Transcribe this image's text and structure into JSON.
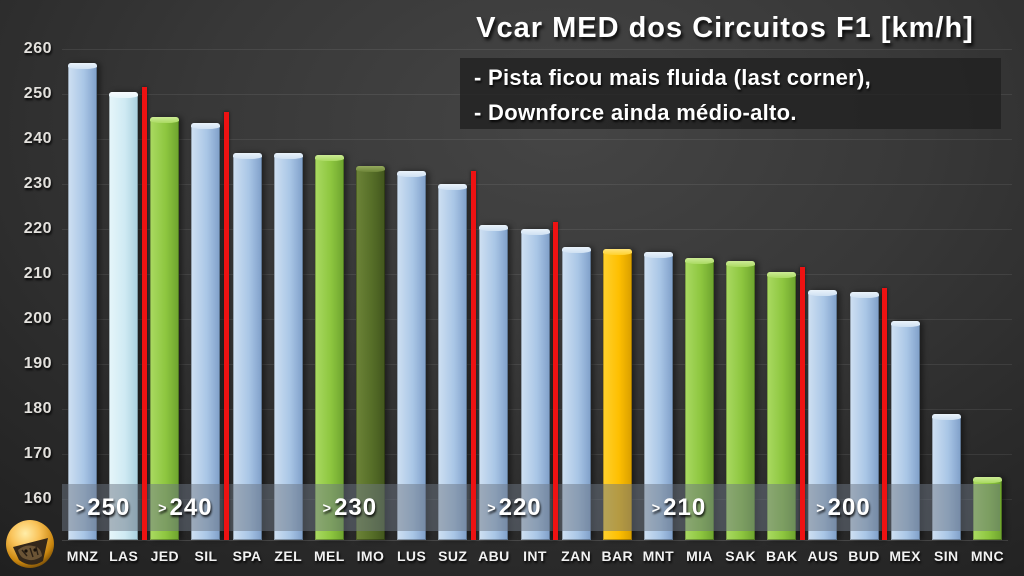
{
  "title": "Vcar MED dos Circuitos F1 [km/h]",
  "annotation": {
    "lines": [
      "- Pista ficou mais fluida (last corner),",
      "- Downforce ainda médio-alto."
    ]
  },
  "chart_data": {
    "type": "bar",
    "title": "Vcar MED dos Circuitos F1 [km/h]",
    "unit": "km/h",
    "categories": [
      "MNZ",
      "LAS",
      "JED",
      "SIL",
      "SPA",
      "ZEL",
      "MEL",
      "IMO",
      "LUS",
      "SUZ",
      "ABU",
      "INT",
      "ZAN",
      "BAR",
      "MNT",
      "MIA",
      "SAK",
      "BAK",
      "AUS",
      "BUD",
      "MEX",
      "SIN",
      "MNC"
    ],
    "values": [
      257,
      250.5,
      245,
      243.5,
      237,
      237,
      236.5,
      234,
      233,
      230,
      221,
      220,
      216,
      215.5,
      215,
      213.5,
      213,
      210.5,
      206.5,
      206,
      199.5,
      179,
      165
    ],
    "bar_colors": [
      "blue",
      "cyan",
      "green",
      "blue",
      "blue",
      "blue",
      "green",
      "darkgreen",
      "blue",
      "blue",
      "blue",
      "blue",
      "blue",
      "yellow",
      "blue",
      "green",
      "green",
      "green",
      "blue",
      "blue",
      "blue",
      "blue",
      "green"
    ],
    "ylim": [
      150,
      262
    ],
    "yticks": [
      160,
      170,
      180,
      190,
      200,
      210,
      220,
      230,
      240,
      250,
      260
    ],
    "grid": true,
    "legend": false,
    "groups": [
      {
        "label": ">250",
        "circuits": [
          "MNZ",
          "LAS"
        ]
      },
      {
        "label": ">240",
        "circuits": [
          "JED",
          "SIL"
        ]
      },
      {
        "label": ">230",
        "circuits": [
          "SPA",
          "ZEL",
          "MEL",
          "IMO",
          "LUS",
          "SUZ"
        ]
      },
      {
        "label": ">220",
        "circuits": [
          "ABU",
          "INT"
        ]
      },
      {
        "label": ">210",
        "circuits": [
          "ZAN",
          "BAR",
          "MNT",
          "MIA",
          "SAK",
          "BAK"
        ]
      },
      {
        "label": ">200",
        "circuits": [
          "AUS",
          "BUD"
        ]
      },
      {
        "label": "",
        "circuits": [
          "MEX",
          "SIN",
          "MNC"
        ]
      }
    ],
    "separator_tops_kmh": [
      251.5,
      246,
      233,
      221.5,
      211.5,
      207
    ]
  },
  "colors": {
    "separator_red": "#ee1212",
    "band_overlay": "rgba(108,118,132,0.5)",
    "bar_palette": {
      "blue": {
        "cap": "#eaf3fb",
        "light": "#cfe0f2",
        "mid": "#a9c6e6",
        "dark": "#7f9fc9"
      },
      "cyan": {
        "cap": "#f7fcfe",
        "light": "#e6f6fa",
        "mid": "#cfeaf3",
        "dark": "#a9d0de"
      },
      "green": {
        "cap": "#cdeb96",
        "light": "#aada62",
        "mid": "#8dc63f",
        "dark": "#6da32e"
      },
      "darkgreen": {
        "cap": "#95aa5e",
        "light": "#6d8438",
        "mid": "#566e28",
        "dark": "#42561d"
      },
      "yellow": {
        "cap": "#ffe37a",
        "light": "#ffd12e",
        "mid": "#febf01",
        "dark": "#d89e00"
      }
    }
  }
}
